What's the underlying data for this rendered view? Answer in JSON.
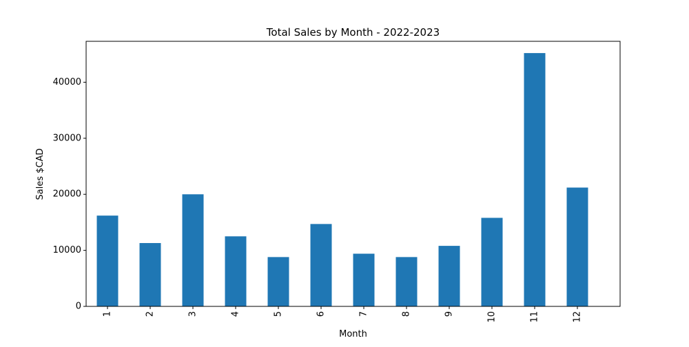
{
  "chart_data": {
    "type": "bar",
    "title": "Total Sales by Month - 2022-2023",
    "xlabel": "Month",
    "ylabel": "Sales $CAD",
    "categories": [
      "1",
      "2",
      "3",
      "4",
      "5",
      "6",
      "7",
      "8",
      "9",
      "10",
      "11",
      "12"
    ],
    "values": [
      16200,
      11300,
      20000,
      12500,
      8800,
      14700,
      9400,
      8800,
      10800,
      15800,
      45200,
      21200
    ],
    "ylim": [
      0,
      47300
    ],
    "yticks": [
      0,
      10000,
      20000,
      30000,
      40000
    ],
    "ytick_labels": [
      "0",
      "10000",
      "20000",
      "30000",
      "40000"
    ],
    "bar_color": "#1f77b4",
    "grid": false,
    "legend": "none"
  }
}
